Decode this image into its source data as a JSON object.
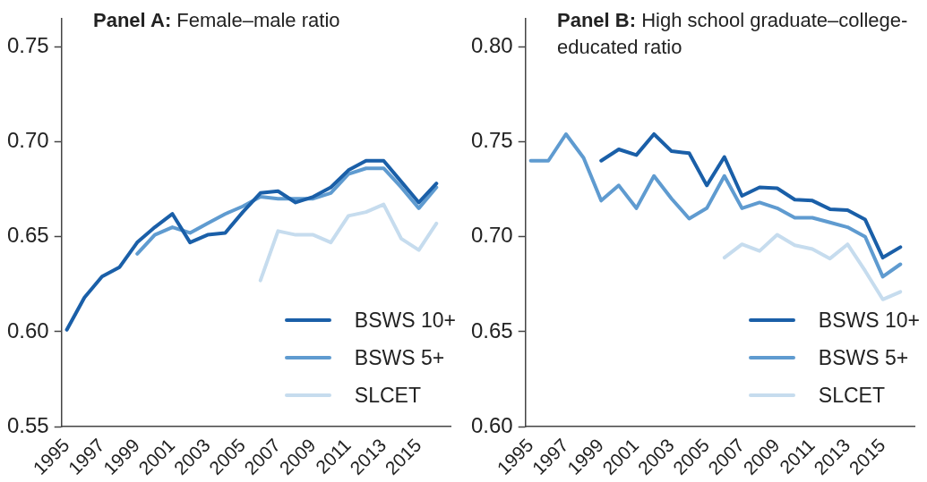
{
  "chart_data": [
    {
      "type": "line",
      "title": "Panel A: Female–male ratio",
      "x": [
        1995,
        1996,
        1997,
        1998,
        1999,
        2000,
        2001,
        2002,
        2003,
        2004,
        2005,
        2006,
        2007,
        2008,
        2009,
        2010,
        2011,
        2012,
        2013,
        2014,
        2015,
        2016
      ],
      "xlim": [
        1994.7,
        2016.8
      ],
      "xticks": [
        1995,
        1997,
        1999,
        2001,
        2003,
        2005,
        2007,
        2009,
        2011,
        2013,
        2015
      ],
      "ylim": [
        0.55,
        0.765
      ],
      "yticks": [
        {
          "value": 0.55,
          "label": "0.55"
        },
        {
          "value": 0.6,
          "label": "0.60"
        },
        {
          "value": 0.65,
          "label": "0.65"
        },
        {
          "value": 0.7,
          "label": "0.70"
        },
        {
          "value": 0.75,
          "label": "0.75"
        }
      ],
      "legend": "bottom right",
      "marker": "none",
      "series": [
        {
          "name": "BSWS 10+",
          "color": "#1a5fa8",
          "values": [
            0.601,
            0.618,
            0.629,
            0.634,
            0.647,
            0.655,
            0.662,
            0.647,
            0.651,
            0.652,
            0.663,
            0.673,
            0.674,
            0.668,
            0.671,
            0.676,
            0.685,
            0.69,
            0.69,
            0.679,
            0.668,
            0.678
          ]
        },
        {
          "name": "BSWS 5+",
          "color": "#5f9bd0",
          "values": [
            null,
            null,
            null,
            null,
            0.641,
            0.651,
            0.655,
            0.652,
            0.657,
            0.662,
            0.666,
            0.671,
            0.67,
            0.67,
            0.67,
            0.673,
            0.683,
            0.686,
            0.686,
            0.676,
            0.665,
            0.676
          ]
        },
        {
          "name": "SLCET",
          "color": "#c6dcee",
          "values": [
            null,
            null,
            null,
            null,
            null,
            null,
            null,
            null,
            null,
            null,
            null,
            0.627,
            0.653,
            0.651,
            0.651,
            0.647,
            0.661,
            0.663,
            0.667,
            0.649,
            0.643,
            0.657
          ]
        }
      ]
    },
    {
      "type": "line",
      "title": "Panel B: High school graduate–college-educated ratio",
      "x": [
        1995,
        1996,
        1997,
        1998,
        1999,
        2000,
        2001,
        2002,
        2003,
        2004,
        2005,
        2006,
        2007,
        2008,
        2009,
        2010,
        2011,
        2012,
        2013,
        2014,
        2015,
        2016
      ],
      "xlim": [
        1994.7,
        2016.8
      ],
      "xticks": [
        1995,
        1997,
        1999,
        2001,
        2003,
        2005,
        2007,
        2009,
        2011,
        2013,
        2015
      ],
      "ylim": [
        0.6,
        0.815
      ],
      "yticks": [
        {
          "value": 0.6,
          "label": "0.60"
        },
        {
          "value": 0.65,
          "label": "0.65"
        },
        {
          "value": 0.7,
          "label": "0.70"
        },
        {
          "value": 0.75,
          "label": "0.75"
        },
        {
          "value": 0.8,
          "label": "0.80"
        }
      ],
      "legend": "bottom right",
      "marker": "none",
      "series": [
        {
          "name": "BSWS 10+",
          "color": "#1a5fa8",
          "values": [
            null,
            null,
            null,
            null,
            0.74,
            0.746,
            0.743,
            0.754,
            0.745,
            0.744,
            0.727,
            0.742,
            0.7215,
            0.726,
            0.7255,
            0.7195,
            0.719,
            0.7145,
            0.714,
            0.709,
            0.689,
            0.6945
          ]
        },
        {
          "name": "BSWS 5+",
          "color": "#5f9bd0",
          "values": [
            0.74,
            0.74,
            0.754,
            0.7415,
            0.719,
            0.727,
            0.715,
            0.732,
            0.72,
            0.7095,
            0.715,
            0.732,
            0.715,
            0.718,
            0.715,
            0.71,
            0.71,
            0.7075,
            0.705,
            0.7,
            0.679,
            0.6855
          ]
        },
        {
          "name": "SLCET",
          "color": "#c6dcee",
          "values": [
            null,
            null,
            null,
            null,
            null,
            null,
            null,
            null,
            null,
            null,
            null,
            0.689,
            0.696,
            0.6925,
            0.701,
            0.6955,
            0.6935,
            0.6885,
            0.696,
            0.682,
            0.667,
            0.671
          ]
        }
      ]
    }
  ]
}
